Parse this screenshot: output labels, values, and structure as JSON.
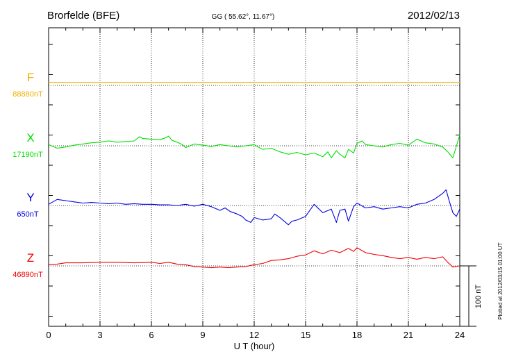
{
  "header": {
    "station": "Brorfelde (BFE)",
    "coords": "GG ( 55.62°,  11.67°)",
    "date": "2012/02/13"
  },
  "footer": {
    "plotted": "Plotted at 2012/03/15 01:00 UT",
    "scale_label": "100 nT"
  },
  "chart_data": {
    "type": "line",
    "xlabel": "U T (hour)",
    "xlim": [
      0,
      24
    ],
    "xticks": [
      "0",
      "3",
      "6",
      "9",
      "12",
      "15",
      "18",
      "21",
      "24"
    ],
    "scale_bar_nT": 100,
    "series": [
      {
        "name": "F",
        "baseline_label": "88880nT",
        "color": "#f0b000",
        "baseline_nT": 88880,
        "x": [
          0,
          24
        ],
        "y": [
          5,
          5
        ]
      },
      {
        "name": "X",
        "baseline_label": "17190nT",
        "color": "#00e000",
        "baseline_nT": 17190,
        "x": [
          0,
          0.5,
          1,
          1.5,
          2,
          2.5,
          3,
          3.5,
          4,
          4.5,
          5,
          5.3,
          5.5,
          6,
          6.5,
          6.8,
          7,
          7.2,
          7.5,
          7.8,
          8,
          8.5,
          9,
          9.5,
          10,
          10.5,
          11,
          11.5,
          12,
          12.3,
          12.5,
          13,
          13.5,
          14,
          14.5,
          15,
          15.5,
          16,
          16.3,
          16.5,
          16.8,
          17,
          17.3,
          17.5,
          17.8,
          18,
          18.3,
          18.5,
          19,
          19.5,
          20,
          20.5,
          21,
          21.3,
          21.5,
          22,
          22.5,
          23,
          23.3,
          23.6,
          24
        ],
        "y": [
          2,
          -4,
          -2,
          1,
          3,
          5,
          6,
          8,
          6,
          7,
          8,
          15,
          12,
          11,
          10,
          13,
          16,
          9,
          6,
          2,
          -3,
          3,
          1,
          -1,
          2,
          0,
          -2,
          0,
          2,
          -3,
          -6,
          -4,
          -10,
          -14,
          -11,
          -15,
          -12,
          -18,
          -10,
          -20,
          -8,
          -14,
          -20,
          -6,
          -12,
          4,
          8,
          2,
          0,
          -2,
          2,
          4,
          1,
          7,
          11,
          5,
          3,
          -2,
          -10,
          -20,
          18
        ]
      },
      {
        "name": "Y",
        "baseline_label": "650nT",
        "color": "#0000e0",
        "baseline_nT": 650,
        "x": [
          0,
          0.5,
          1,
          1.5,
          2,
          2.5,
          3,
          3.5,
          4,
          4.5,
          5,
          5.5,
          6,
          6.5,
          7,
          7.5,
          8,
          8.5,
          9,
          9.5,
          10,
          10.3,
          10.6,
          11,
          11.3,
          11.5,
          11.8,
          12,
          12.5,
          13,
          13.2,
          13.5,
          14,
          14.2,
          14.5,
          15,
          15.3,
          15.5,
          16,
          16.5,
          16.8,
          17,
          17.3,
          17.5,
          17.8,
          18,
          18.5,
          19,
          19.5,
          20,
          20.5,
          21,
          21.5,
          22,
          22.5,
          23,
          23.2,
          23.4,
          23.6,
          23.8,
          24
        ],
        "y": [
          2,
          10,
          8,
          6,
          4,
          5,
          4,
          3,
          4,
          2,
          3,
          2,
          2,
          1,
          1,
          0,
          2,
          -1,
          2,
          -2,
          -8,
          -4,
          -10,
          -14,
          -18,
          -24,
          -28,
          -20,
          -24,
          -22,
          -14,
          -20,
          -32,
          -26,
          -24,
          -18,
          -6,
          2,
          -12,
          -6,
          -28,
          -8,
          -6,
          -26,
          -2,
          4,
          -4,
          -2,
          -6,
          -4,
          -2,
          -4,
          2,
          4,
          10,
          20,
          26,
          6,
          -12,
          -18,
          -6
        ]
      },
      {
        "name": "Z",
        "baseline_label": "46890nT",
        "color": "#f00000",
        "baseline_nT": 46890,
        "x": [
          0,
          0.5,
          1,
          2,
          3,
          4,
          5,
          6,
          6.5,
          7,
          7.5,
          8,
          8.5,
          9,
          9.5,
          10,
          10.5,
          11,
          11.5,
          12,
          12.5,
          13,
          13.5,
          14,
          14.5,
          15,
          15.5,
          16,
          16.5,
          17,
          17.5,
          17.8,
          18,
          18.5,
          19,
          19.5,
          20,
          20.5,
          21,
          21.5,
          22,
          22.5,
          23,
          23.3,
          23.6,
          24
        ],
        "y": [
          2,
          3,
          5,
          5,
          6,
          6,
          5,
          6,
          4,
          6,
          3,
          2,
          -1,
          -2,
          -3,
          -2,
          -3,
          -2,
          -1,
          2,
          4,
          9,
          10,
          12,
          16,
          18,
          25,
          20,
          26,
          22,
          29,
          24,
          30,
          22,
          19,
          17,
          14,
          12,
          14,
          11,
          14,
          12,
          15,
          6,
          -2,
          0
        ]
      }
    ]
  }
}
